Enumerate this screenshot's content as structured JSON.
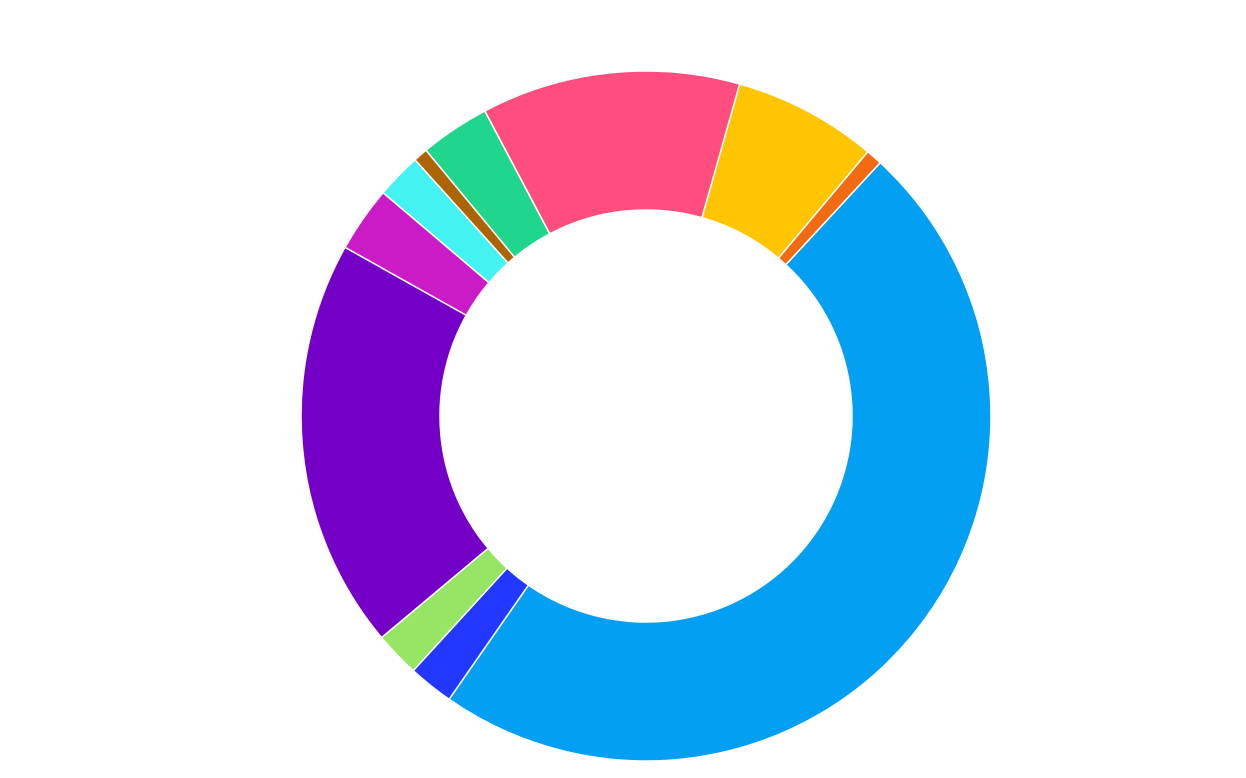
{
  "chart_data": {
    "type": "pie",
    "variant": "donut",
    "title": "",
    "legend": "none",
    "slices": [
      {
        "value": 0.8,
        "color": "#F26B13"
      },
      {
        "value": 49.7,
        "color": "#039FF2"
      },
      {
        "value": 2.2,
        "color": "#2238FF"
      },
      {
        "value": 2.2,
        "color": "#97E564"
      },
      {
        "value": 20.0,
        "color": "#7400C8"
      },
      {
        "value": 3.2,
        "color": "#CB1BC7"
      },
      {
        "value": 2.2,
        "color": "#44F2F2"
      },
      {
        "value": 0.7,
        "color": "#AD6503"
      },
      {
        "value": 3.4,
        "color": "#20D68C"
      },
      {
        "value": 12.6,
        "color": "#FF4D7E"
      },
      {
        "value": 7.0,
        "color": "#FFC500"
      }
    ]
  }
}
